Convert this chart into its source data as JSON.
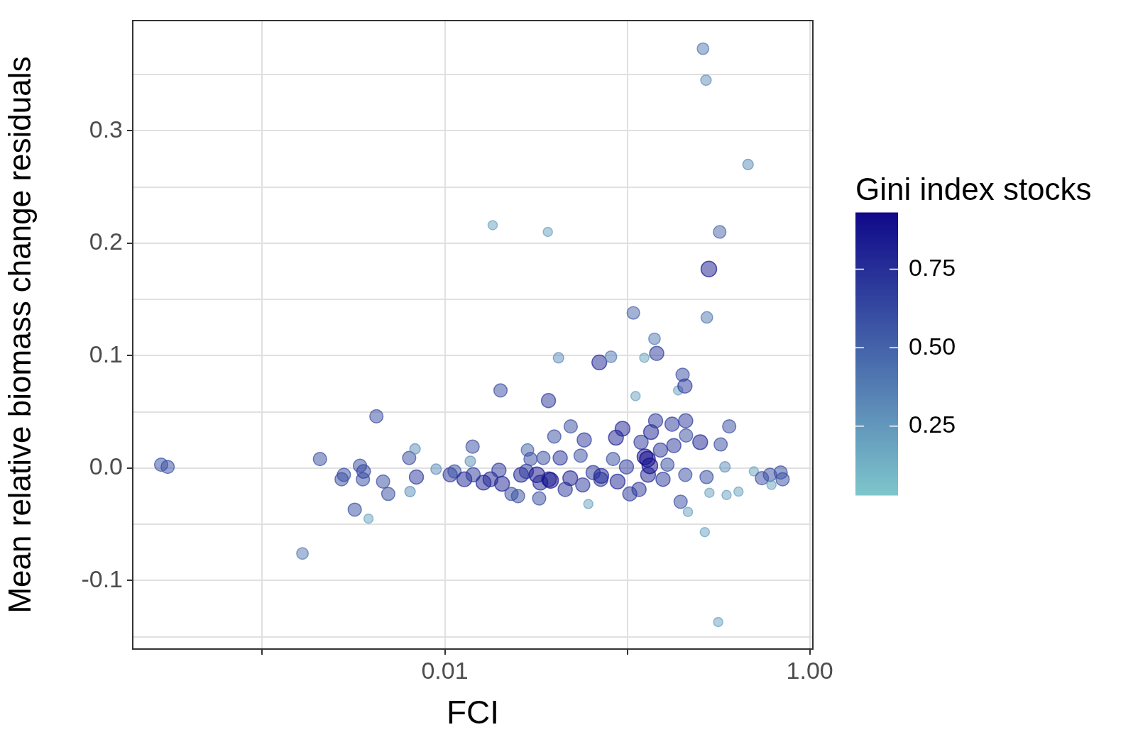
{
  "chart_data": {
    "type": "bubble",
    "sizes": [
      0.72,
      0.72,
      0.55,
      0.72,
      0.72,
      0.72,
      0.72,
      0.72,
      0.72,
      0.77,
      0.35,
      0.72,
      0.72,
      0.72,
      0.72,
      0.45,
      0.45,
      0.82,
      0.45,
      0.82,
      0.72,
      0.9,
      0.45,
      0.72,
      0.82,
      0.9,
      0.9,
      0.35,
      0.82,
      0.72,
      0.9,
      0.72,
      0.72,
      0.9,
      0.82,
      0.65,
      0.72,
      1,
      0.72,
      0.9,
      0.72,
      0.35,
      0.82,
      0.9,
      1,
      0.72,
      0.45,
      0.82,
      0.82,
      0.9,
      0.72,
      0.72,
      0.82,
      0.82,
      0.35,
      0.82,
      0.9,
      0.82,
      0.9,
      0.55,
      0.72,
      0.9,
      0.9,
      0.9,
      0.82,
      0.82,
      0.65,
      0.35,
      0.82,
      0.82,
      0.35,
      1,
      1,
      0.9,
      1,
      0.9,
      0.55,
      0.82,
      0.82,
      0.82,
      0.82,
      0.72,
      0.82,
      0.82,
      0.35,
      0.72,
      0.72,
      0.82,
      0.82,
      0.72,
      0.72,
      0.35,
      0.9,
      0.55,
      0.45,
      0.35,
      0.55,
      1,
      0.72,
      0.35,
      0.65,
      0.35,
      0.72,
      0.45,
      0.35,
      0.72,
      0.35,
      0.45,
      0.35,
      0.72,
      0.72,
      0.35,
      0.72,
      0.72
    ],
    "xlabel": "FCI",
    "ylabel": "Mean relative biomass change residuals",
    "clabel": "Gini index stocks",
    "log": "x",
    "grid": true,
    "legend": false,
    "marker": "circle",
    "xlim": [
      0.000195,
      1.04
    ],
    "xticks": [
      {
        "value": 0.001,
        "label": null
      },
      {
        "value": 0.01,
        "label": "0.01"
      },
      {
        "value": 0.1,
        "label": null
      },
      {
        "value": 1,
        "label": "1.00"
      }
    ],
    "ylim": [
      -0.161,
      0.398
    ],
    "yticks": [
      {
        "value": -0.15,
        "label": null
      },
      {
        "value": -0.1,
        "label": "-0.1"
      },
      {
        "value": -0.05,
        "label": null
      },
      {
        "value": 0,
        "label": "0.0"
      },
      {
        "value": 0.05,
        "label": null
      },
      {
        "value": 0.1,
        "label": "0.1"
      },
      {
        "value": 0.15,
        "label": null
      },
      {
        "value": 0.2,
        "label": "0.2"
      },
      {
        "value": 0.25,
        "label": null
      },
      {
        "value": 0.3,
        "label": "0.3"
      },
      {
        "value": 0.35,
        "label": null
      }
    ],
    "clim": [
      0.03,
      0.93
    ],
    "cticks": [
      {
        "value": 0.25,
        "label": "0.25"
      },
      {
        "value": 0.5,
        "label": "0.50"
      },
      {
        "value": 0.75,
        "label": "0.75"
      }
    ],
    "x": [
      0.000279,
      0.000303,
      0.00166,
      0.00207,
      0.00272,
      0.0028,
      0.00321,
      0.00343,
      0.00356,
      0.00359,
      0.00382,
      0.00422,
      0.00459,
      0.0049,
      0.00638,
      0.00645,
      0.00687,
      0.00699,
      0.00896,
      0.0107,
      0.0113,
      0.0128,
      0.0138,
      0.0142,
      0.0143,
      0.0163,
      0.0178,
      0.0183,
      0.0198,
      0.0202,
      0.0206,
      0.0232,
      0.0252,
      0.0262,
      0.028,
      0.0284,
      0.0295,
      0.032,
      0.0329,
      0.0334,
      0.0347,
      0.0367,
      0.037,
      0.0372,
      0.038,
      0.0398,
      0.042,
      0.0429,
      0.0457,
      0.0487,
      0.049,
      0.0555,
      0.0581,
      0.057,
      0.0612,
      0.065,
      0.0703,
      0.0716,
      0.072,
      0.0814,
      0.0836,
      0.0867,
      0.0885,
      0.0942,
      0.099,
      0.1033,
      0.108,
      0.111,
      0.116,
      0.119,
      0.124,
      0.125,
      0.129,
      0.13,
      0.133,
      0.135,
      0.141,
      0.145,
      0.143,
      0.152,
      0.157,
      0.166,
      0.176,
      0.18,
      0.19,
      0.196,
      0.201,
      0.207,
      0.209,
      0.21,
      0.208,
      0.215,
      0.251,
      0.26,
      0.27,
      0.266,
      0.273,
      0.28,
      0.272,
      0.282,
      0.321,
      0.315,
      0.325,
      0.343,
      0.35,
      0.362,
      0.407,
      0.459,
      0.494,
      0.547,
      0.605,
      0.617,
      0.693,
      0.71
    ],
    "values": [
      0.003,
      0.001,
      -0.076,
      0.008,
      -0.01,
      -0.006,
      -0.037,
      0.002,
      -0.01,
      -0.003,
      -0.045,
      0.046,
      -0.012,
      -0.023,
      0.009,
      -0.021,
      0.017,
      -0.008,
      -0.001,
      -0.006,
      -0.003,
      -0.01,
      0.006,
      0.019,
      -0.006,
      -0.013,
      -0.01,
      0.216,
      -0.002,
      0.069,
      -0.014,
      -0.023,
      -0.025,
      -0.006,
      -0.003,
      0.016,
      0.008,
      -0.006,
      -0.027,
      -0.013,
      0.009,
      0.21,
      0.06,
      -0.01,
      -0.011,
      0.028,
      0.098,
      0.009,
      -0.019,
      -0.009,
      0.037,
      0.011,
      0.025,
      -0.015,
      -0.032,
      -0.004,
      0.094,
      -0.01,
      -0.007,
      0.099,
      0.008,
      0.027,
      -0.012,
      0.035,
      0.001,
      -0.023,
      0.138,
      0.064,
      -0.019,
      0.023,
      0.098,
      0.01,
      0.008,
      -0.006,
      0.002,
      0.032,
      0.115,
      0.102,
      0.042,
      0.016,
      -0.01,
      0.003,
      0.039,
      0.02,
      0.069,
      -0.03,
      0.083,
      0.073,
      0.042,
      0.029,
      -0.006,
      -0.039,
      0.023,
      0.373,
      0.345,
      -0.057,
      0.134,
      0.177,
      -0.008,
      -0.022,
      0.21,
      -0.137,
      0.021,
      0.001,
      -0.024,
      0.037,
      -0.021,
      0.27,
      -0.003,
      -0.009,
      -0.006,
      -0.015,
      -0.004,
      -0.01
    ],
    "cvalues": [
      0.6,
      0.6,
      0.4,
      0.6,
      0.6,
      0.6,
      0.6,
      0.6,
      0.6,
      0.65,
      0.2,
      0.6,
      0.6,
      0.6,
      0.6,
      0.3,
      0.3,
      0.7,
      0.3,
      0.7,
      0.6,
      0.8,
      0.3,
      0.6,
      0.7,
      0.8,
      0.8,
      0.2,
      0.7,
      0.6,
      0.8,
      0.6,
      0.6,
      0.8,
      0.7,
      0.5,
      0.6,
      0.9,
      0.6,
      0.8,
      0.6,
      0.2,
      0.7,
      0.8,
      0.9,
      0.6,
      0.3,
      0.7,
      0.7,
      0.8,
      0.6,
      0.6,
      0.7,
      0.7,
      0.2,
      0.7,
      0.8,
      0.7,
      0.8,
      0.4,
      0.6,
      0.8,
      0.8,
      0.8,
      0.7,
      0.7,
      0.5,
      0.2,
      0.7,
      0.7,
      0.2,
      0.9,
      0.95,
      0.8,
      0.9,
      0.8,
      0.4,
      0.7,
      0.7,
      0.7,
      0.7,
      0.6,
      0.7,
      0.7,
      0.2,
      0.6,
      0.6,
      0.7,
      0.7,
      0.6,
      0.6,
      0.2,
      0.8,
      0.4,
      0.3,
      0.2,
      0.4,
      0.85,
      0.6,
      0.2,
      0.5,
      0.2,
      0.6,
      0.3,
      0.2,
      0.6,
      0.2,
      0.3,
      0.2,
      0.6,
      0.6,
      0.2,
      0.6,
      0.6
    ]
  }
}
